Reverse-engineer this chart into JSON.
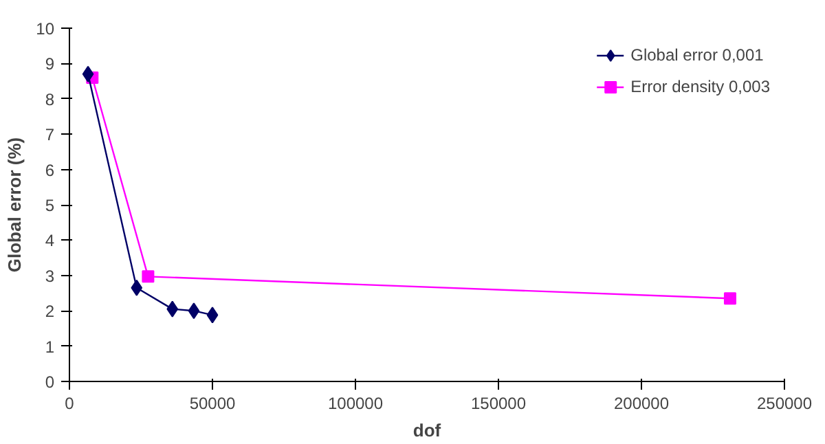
{
  "chart_data": {
    "type": "line",
    "xlabel": "dof",
    "ylabel": "Global error (%)",
    "xlim": [
      0,
      250000
    ],
    "xticks": [
      0,
      50000,
      100000,
      150000,
      200000,
      250000
    ],
    "ylim": [
      0,
      10
    ],
    "yticks": [
      0,
      1,
      2,
      3,
      4,
      5,
      6,
      7,
      8,
      9,
      10
    ],
    "grid": false,
    "legend": "top right",
    "series": [
      {
        "name": "Global error 0,001",
        "color": "#000066",
        "marker": "diamond",
        "x": [
          6500,
          23500,
          36000,
          43500,
          50000
        ],
        "values": [
          8.7,
          2.65,
          2.05,
          2.0,
          1.88
        ]
      },
      {
        "name": "Error density 0,003",
        "color": "#ff00ff",
        "marker": "square",
        "x": [
          8000,
          27500,
          231000
        ],
        "values": [
          8.6,
          2.97,
          2.35
        ]
      }
    ]
  }
}
